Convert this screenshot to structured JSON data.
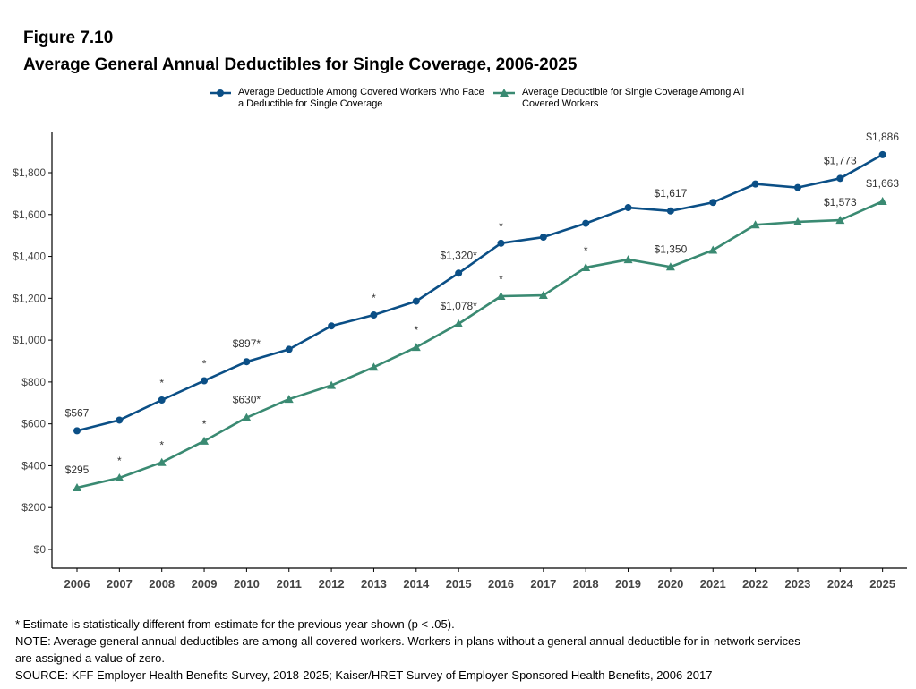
{
  "figure": {
    "label": "Figure 7.10",
    "title": "Average General Annual Deductibles for Single Coverage, 2006-2025"
  },
  "legend": [
    {
      "name": "Average Deductible Among Covered Workers Who Face a Deductible for Single Coverage",
      "color": "#0b4f86",
      "marker": "circle"
    },
    {
      "name": "Average Deductible for Single Coverage Among All Covered Workers",
      "color": "#3a8a72",
      "marker": "triangle"
    }
  ],
  "chart_data": {
    "type": "line",
    "title": "Average General Annual Deductibles for Single Coverage, 2006-2025",
    "xlabel": "",
    "ylabel": "",
    "categories": [
      "2006",
      "2007",
      "2008",
      "2009",
      "2010",
      "2011",
      "2012",
      "2013",
      "2014",
      "2015",
      "2016",
      "2017",
      "2018",
      "2019",
      "2020",
      "2021",
      "2022",
      "2023",
      "2024",
      "2025"
    ],
    "ylim": [
      0,
      2000
    ],
    "yticks": [
      0,
      200,
      400,
      600,
      800,
      1000,
      1200,
      1400,
      1600,
      1800
    ],
    "ytick_labels": [
      "$0",
      "$200",
      "$400",
      "$600",
      "$800",
      "$1,000",
      "$1,200",
      "$1,400",
      "$1,600",
      "$1,800"
    ],
    "grid": false,
    "legend_position": "top",
    "series": [
      {
        "name": "Average Deductible Among Covered Workers Who Face a Deductible for Single Coverage",
        "color": "#0b4f86",
        "marker": "circle",
        "values": [
          567,
          618,
          714,
          806,
          897,
          956,
          1068,
          1120,
          1186,
          1320,
          1463,
          1492,
          1558,
          1633,
          1617,
          1658,
          1746,
          1729,
          1773,
          1886
        ],
        "labels": {
          "0": "$567",
          "4": "$897*",
          "9": "$1,320*",
          "14": "$1,617",
          "18": "$1,773",
          "19": "$1,886"
        },
        "stars": [
          2,
          3,
          7,
          10
        ]
      },
      {
        "name": "Average Deductible for Single Coverage Among All Covered Workers",
        "color": "#3a8a72",
        "marker": "triangle",
        "values": [
          295,
          342,
          416,
          518,
          630,
          718,
          784,
          871,
          966,
          1078,
          1210,
          1214,
          1347,
          1385,
          1350,
          1430,
          1551,
          1565,
          1573,
          1663
        ],
        "labels": {
          "0": "$295",
          "4": "$630*",
          "9": "$1,078*",
          "14": "$1,350",
          "18": "$1,573",
          "19": "$1,663"
        },
        "stars": [
          1,
          2,
          3,
          8,
          10,
          12
        ]
      }
    ],
    "star_symbol": "*"
  },
  "footnotes": {
    "significance": "* Estimate is statistically different from estimate for the previous year shown (p < .05).",
    "note_line1": "NOTE: Average general annual deductibles are among all covered workers. Workers in plans without a general annual deductible for in-network services",
    "note_line2": "are assigned a value of zero.",
    "source": "SOURCE: KFF Employer Health Benefits Survey, 2018-2025; Kaiser/HRET Survey of Employer-Sponsored Health Benefits, 2006-2017"
  }
}
